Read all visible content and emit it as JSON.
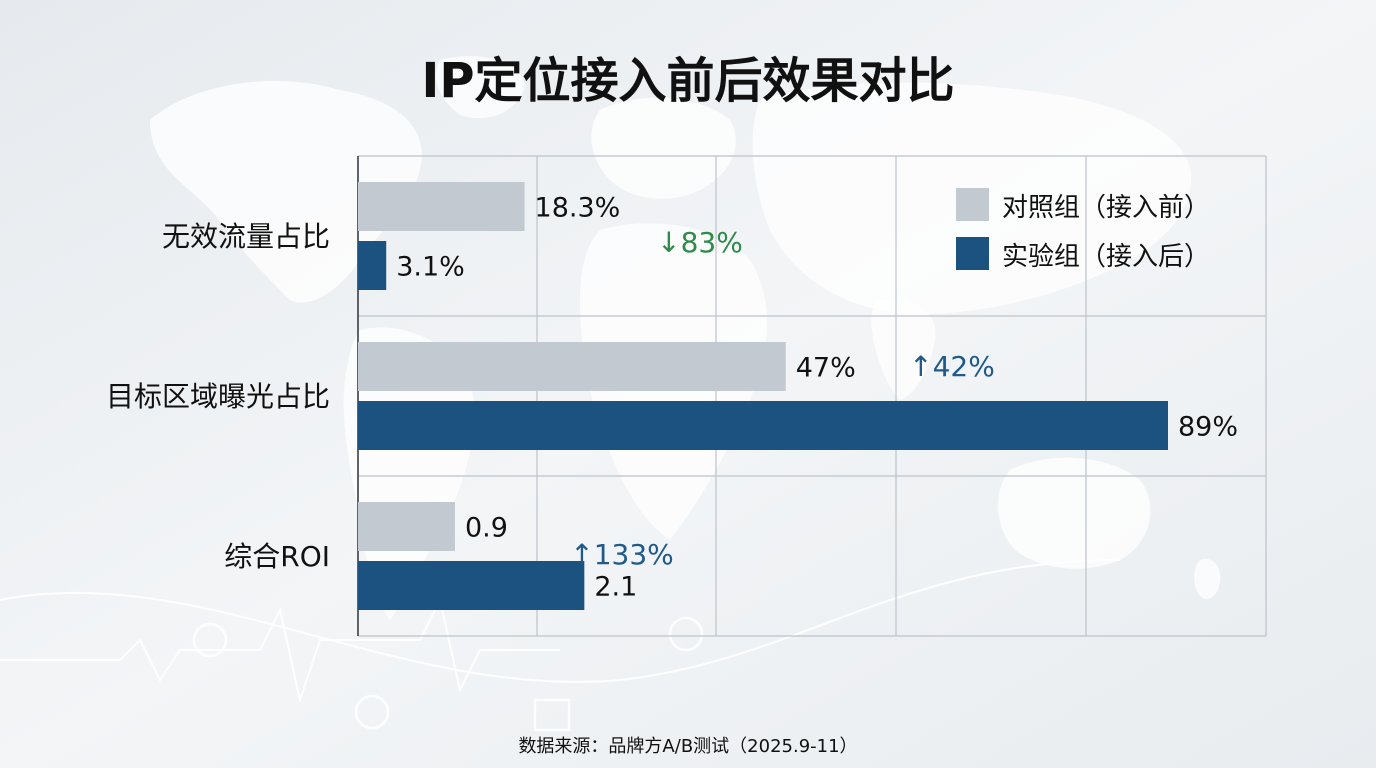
{
  "chart_data": {
    "type": "bar",
    "orientation": "horizontal",
    "title": "IP定位接入前后效果对比",
    "categories": [
      "无效流量占比",
      "目标区域曝光占比",
      "综合ROI"
    ],
    "series": [
      {
        "name": "对照组（接入前）",
        "color": "#c3c9d0",
        "values": [
          18.3,
          47,
          0.9
        ],
        "labels": [
          "18.3%",
          "47%",
          "0.9"
        ]
      },
      {
        "name": "实验组（接入后）",
        "color": "#1b527f",
        "values": [
          3.1,
          89,
          2.1
        ],
        "labels": [
          "3.1%",
          "89%",
          "2.1"
        ]
      }
    ],
    "changes": [
      {
        "text": "↓83%",
        "color": "#2e8b4a"
      },
      {
        "text": "↑42%",
        "color": "#1f5a8a"
      },
      {
        "text": "↑133%",
        "color": "#1f5a8a"
      }
    ],
    "xlim": [
      0,
      100
    ],
    "grid": true,
    "legend_position": "top-right",
    "source": "数据来源：品牌方A/B测试（2025.9-11）"
  }
}
